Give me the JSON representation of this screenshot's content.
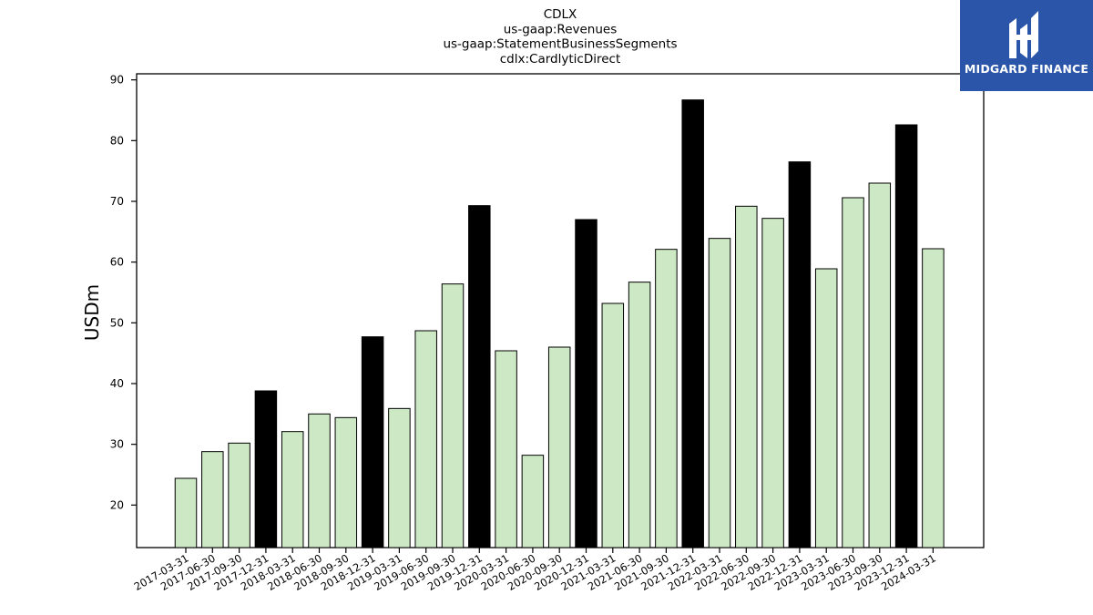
{
  "chart_data": {
    "type": "bar",
    "title_lines": [
      "CDLX",
      "us-gaap:Revenues",
      "us-gaap:StatementBusinessSegments",
      "cdlx:CardlyticDirect"
    ],
    "ylabel": "USDm",
    "ylim": [
      13,
      91
    ],
    "yticks": [
      20,
      30,
      40,
      50,
      60,
      70,
      80,
      90
    ],
    "categories": [
      "2017-03-31",
      "2017-06-30",
      "2017-09-30",
      "2017-12-31",
      "2018-03-31",
      "2018-06-30",
      "2018-09-30",
      "2018-12-31",
      "2019-03-31",
      "2019-06-30",
      "2019-09-30",
      "2019-12-31",
      "2020-03-31",
      "2020-06-30",
      "2020-09-30",
      "2020-12-31",
      "2021-03-31",
      "2021-06-30",
      "2021-09-30",
      "2021-12-31",
      "2022-03-31",
      "2022-06-30",
      "2022-09-30",
      "2022-12-31",
      "2023-03-31",
      "2023-06-30",
      "2023-09-30",
      "2023-12-31",
      "2024-03-31"
    ],
    "values": [
      24.4,
      28.8,
      30.2,
      38.8,
      32.1,
      35.0,
      34.4,
      47.7,
      35.9,
      48.7,
      56.4,
      69.3,
      45.4,
      28.2,
      46.0,
      67.0,
      53.2,
      56.7,
      62.1,
      86.7,
      63.9,
      69.2,
      67.2,
      76.5,
      58.9,
      70.6,
      73.0,
      82.6,
      62.2
    ],
    "highlight_quarter": "12-31",
    "colors": {
      "normal": "#cde8c4",
      "highlight": "#000000",
      "edge": "#000000"
    },
    "grid": false,
    "legend": "none"
  },
  "logo": {
    "text": "MIDGARD FINANCE",
    "background": "#2b55a8"
  }
}
